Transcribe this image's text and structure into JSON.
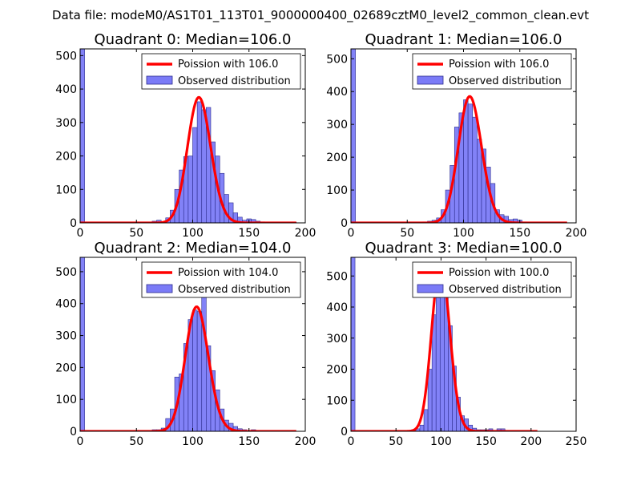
{
  "figure": {
    "title": "Data file: modeM0/AS1T01_113T01_9000000400_02689cztM0_level2_common_clean.evt"
  },
  "colors": {
    "bar_fill": "#7b7bf7",
    "bar_edge": "#2c2c8c",
    "curve": "#ff0000"
  },
  "chart_data": [
    {
      "type": "bar",
      "title": "Quadrant 0: Median=106.0",
      "xlim": [
        0,
        200
      ],
      "ylim": [
        0,
        520
      ],
      "xticks": [
        0,
        50,
        100,
        150,
        200
      ],
      "yticks": [
        0,
        100,
        200,
        300,
        400,
        500
      ],
      "legend": {
        "curve_label": "Poission with 106.0",
        "bar_label": "Observed distribution",
        "placement": "top-right"
      },
      "bin_width": 4,
      "bins": [
        {
          "x": 0,
          "value": 520
        },
        {
          "x": 64,
          "value": 5
        },
        {
          "x": 68,
          "value": 8
        },
        {
          "x": 72,
          "value": 3
        },
        {
          "x": 76,
          "value": 15
        },
        {
          "x": 80,
          "value": 38
        },
        {
          "x": 84,
          "value": 100
        },
        {
          "x": 88,
          "value": 158
        },
        {
          "x": 92,
          "value": 198
        },
        {
          "x": 96,
          "value": 200
        },
        {
          "x": 100,
          "value": 285
        },
        {
          "x": 104,
          "value": 362
        },
        {
          "x": 108,
          "value": 338
        },
        {
          "x": 112,
          "value": 345
        },
        {
          "x": 116,
          "value": 242
        },
        {
          "x": 120,
          "value": 200
        },
        {
          "x": 124,
          "value": 148
        },
        {
          "x": 128,
          "value": 85
        },
        {
          "x": 132,
          "value": 60
        },
        {
          "x": 136,
          "value": 30
        },
        {
          "x": 140,
          "value": 17
        },
        {
          "x": 144,
          "value": 8
        },
        {
          "x": 148,
          "value": 12
        },
        {
          "x": 152,
          "value": 10
        },
        {
          "x": 156,
          "value": 5
        },
        {
          "x": 160,
          "value": 3
        },
        {
          "x": 164,
          "value": 2
        },
        {
          "x": 168,
          "value": 2
        },
        {
          "x": 172,
          "value": 2
        },
        {
          "x": 188,
          "value": 2
        }
      ],
      "curve": {
        "mean": 106,
        "peak": 375,
        "x_end": 192
      }
    },
    {
      "type": "bar",
      "title": "Quadrant 1: Median=106.0",
      "xlim": [
        0,
        200
      ],
      "ylim": [
        0,
        530
      ],
      "xticks": [
        0,
        50,
        100,
        150,
        200
      ],
      "yticks": [
        0,
        100,
        200,
        300,
        400,
        500
      ],
      "legend": {
        "curve_label": "Poission with 106.0",
        "bar_label": "Observed distribution",
        "placement": "top-right"
      },
      "bin_width": 4,
      "bins": [
        {
          "x": 0,
          "value": 530
        },
        {
          "x": 64,
          "value": 3
        },
        {
          "x": 68,
          "value": 5
        },
        {
          "x": 72,
          "value": 8
        },
        {
          "x": 76,
          "value": 15
        },
        {
          "x": 80,
          "value": 40
        },
        {
          "x": 84,
          "value": 100
        },
        {
          "x": 88,
          "value": 175
        },
        {
          "x": 92,
          "value": 292
        },
        {
          "x": 96,
          "value": 335
        },
        {
          "x": 100,
          "value": 375
        },
        {
          "x": 104,
          "value": 362
        },
        {
          "x": 108,
          "value": 322
        },
        {
          "x": 112,
          "value": 255
        },
        {
          "x": 116,
          "value": 225
        },
        {
          "x": 120,
          "value": 170
        },
        {
          "x": 124,
          "value": 120
        },
        {
          "x": 128,
          "value": 40
        },
        {
          "x": 132,
          "value": 25
        },
        {
          "x": 136,
          "value": 20
        },
        {
          "x": 140,
          "value": 10
        },
        {
          "x": 144,
          "value": 12
        },
        {
          "x": 148,
          "value": 8
        },
        {
          "x": 152,
          "value": 3
        },
        {
          "x": 156,
          "value": 2
        },
        {
          "x": 160,
          "value": 2
        },
        {
          "x": 164,
          "value": 2
        },
        {
          "x": 172,
          "value": 2
        },
        {
          "x": 184,
          "value": 2
        }
      ],
      "curve": {
        "mean": 106,
        "peak": 385,
        "x_end": 192
      }
    },
    {
      "type": "bar",
      "title": "Quadrant 2: Median=104.0",
      "xlim": [
        0,
        200
      ],
      "ylim": [
        0,
        545
      ],
      "xticks": [
        0,
        50,
        100,
        150,
        200
      ],
      "yticks": [
        0,
        100,
        200,
        300,
        400,
        500
      ],
      "legend": {
        "curve_label": "Poission with 104.0",
        "bar_label": "Observed distribution",
        "placement": "top-right"
      },
      "bin_width": 4,
      "bins": [
        {
          "x": 0,
          "value": 545
        },
        {
          "x": 56,
          "value": 3
        },
        {
          "x": 60,
          "value": 3
        },
        {
          "x": 64,
          "value": 5
        },
        {
          "x": 68,
          "value": 5
        },
        {
          "x": 72,
          "value": 10
        },
        {
          "x": 76,
          "value": 40
        },
        {
          "x": 80,
          "value": 70
        },
        {
          "x": 84,
          "value": 170
        },
        {
          "x": 88,
          "value": 180
        },
        {
          "x": 92,
          "value": 275
        },
        {
          "x": 96,
          "value": 350
        },
        {
          "x": 100,
          "value": 380
        },
        {
          "x": 104,
          "value": 375
        },
        {
          "x": 108,
          "value": 430
        },
        {
          "x": 112,
          "value": 268
        },
        {
          "x": 116,
          "value": 190
        },
        {
          "x": 120,
          "value": 130
        },
        {
          "x": 124,
          "value": 70
        },
        {
          "x": 128,
          "value": 35
        },
        {
          "x": 132,
          "value": 25
        },
        {
          "x": 136,
          "value": 15
        },
        {
          "x": 140,
          "value": 8
        },
        {
          "x": 144,
          "value": 5
        },
        {
          "x": 148,
          "value": 3
        },
        {
          "x": 152,
          "value": 5
        },
        {
          "x": 156,
          "value": 2
        },
        {
          "x": 160,
          "value": 2
        },
        {
          "x": 164,
          "value": 2
        }
      ],
      "curve": {
        "mean": 104,
        "peak": 390,
        "x_end": 192
      }
    },
    {
      "type": "bar",
      "title": "Quadrant 3: Median=100.0",
      "xlim": [
        0,
        250
      ],
      "ylim": [
        0,
        560
      ],
      "xticks": [
        0,
        50,
        100,
        150,
        200,
        250
      ],
      "yticks": [
        0,
        100,
        200,
        300,
        400,
        500
      ],
      "legend": {
        "curve_label": "Poission with 100.0",
        "bar_label": "Observed distribution",
        "placement": "top-right"
      },
      "bin_width": 4.5,
      "bins": [
        {
          "x": 0,
          "value": 560
        },
        {
          "x": 58.5,
          "value": 2
        },
        {
          "x": 63,
          "value": 3
        },
        {
          "x": 67.5,
          "value": 5
        },
        {
          "x": 72,
          "value": 8
        },
        {
          "x": 76.5,
          "value": 20
        },
        {
          "x": 81,
          "value": 70
        },
        {
          "x": 85.5,
          "value": 200
        },
        {
          "x": 90,
          "value": 375
        },
        {
          "x": 94.5,
          "value": 430
        },
        {
          "x": 99,
          "value": 535
        },
        {
          "x": 103.5,
          "value": 460
        },
        {
          "x": 108,
          "value": 340
        },
        {
          "x": 112.5,
          "value": 210
        },
        {
          "x": 117,
          "value": 110
        },
        {
          "x": 121.5,
          "value": 50
        },
        {
          "x": 126,
          "value": 40
        },
        {
          "x": 130.5,
          "value": 20
        },
        {
          "x": 135,
          "value": 10
        },
        {
          "x": 139.5,
          "value": 5
        },
        {
          "x": 144,
          "value": 5
        },
        {
          "x": 148.5,
          "value": 5
        },
        {
          "x": 153,
          "value": 8
        },
        {
          "x": 157.5,
          "value": 3
        },
        {
          "x": 162,
          "value": 8
        },
        {
          "x": 166.5,
          "value": 8
        },
        {
          "x": 171,
          "value": 2
        },
        {
          "x": 180,
          "value": 2
        },
        {
          "x": 198,
          "value": 2
        }
      ],
      "curve": {
        "mean": 100,
        "peak": 540,
        "x_end": 207
      }
    }
  ]
}
